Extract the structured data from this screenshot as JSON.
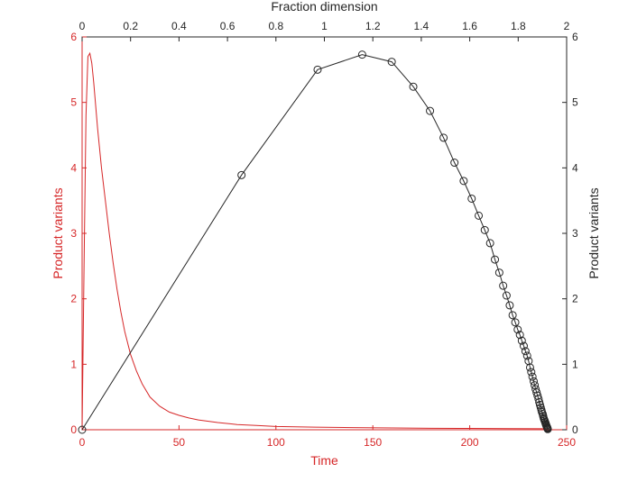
{
  "chart_data": {
    "type": "line",
    "title": "",
    "xlabel": "Time",
    "ylabel": "Product variants",
    "x2label": "Fraction dimension",
    "y2label": "Product variants",
    "xlim": [
      0,
      250
    ],
    "ylim": [
      0,
      6
    ],
    "x2lim": [
      0,
      2
    ],
    "y2lim": [
      0,
      6
    ],
    "xticks": [
      0,
      50,
      100,
      150,
      200,
      250
    ],
    "yticks": [
      0,
      1,
      2,
      3,
      4,
      5,
      6
    ],
    "x2ticks": [
      0,
      0.2,
      0.4,
      0.6,
      0.8,
      1,
      1.2,
      1.4,
      1.6,
      1.8,
      2
    ],
    "y2ticks": [
      0,
      1,
      2,
      3,
      4,
      5,
      6
    ],
    "xtick_labels": [
      "0",
      "50",
      "100",
      "150",
      "200",
      "250"
    ],
    "ytick_labels": [
      "0",
      "1",
      "2",
      "3",
      "4",
      "5",
      "6"
    ],
    "x2tick_labels": [
      "0",
      "0.2",
      "0.4",
      "0.6",
      "0.8",
      "1",
      "1.2",
      "1.4",
      "1.6",
      "1.8",
      "2"
    ],
    "y2tick_labels": [
      "0",
      "1",
      "2",
      "3",
      "4",
      "5",
      "6"
    ],
    "grid": false,
    "series": [
      {
        "axes": "bottom-left",
        "color": "#d62728",
        "marker": "none",
        "x": [
          0,
          1,
          2,
          3,
          4,
          5,
          6,
          8,
          10,
          12,
          14,
          16,
          18,
          20,
          22,
          25,
          28,
          31,
          35,
          40,
          45,
          50,
          55,
          60,
          70,
          80,
          90,
          100,
          120,
          140,
          160,
          180,
          200,
          220,
          240
        ],
        "y": [
          0,
          2.5,
          4.8,
          5.7,
          5.75,
          5.6,
          5.3,
          4.6,
          4.0,
          3.5,
          3.0,
          2.55,
          2.15,
          1.8,
          1.5,
          1.15,
          0.9,
          0.7,
          0.5,
          0.36,
          0.27,
          0.22,
          0.18,
          0.15,
          0.11,
          0.08,
          0.065,
          0.05,
          0.04,
          0.032,
          0.027,
          0.023,
          0.02,
          0.018,
          0.016
        ]
      },
      {
        "axes": "top-right",
        "color": "#262626",
        "marker": "circle",
        "x": [
          0,
          0.658,
          0.972,
          1.156,
          1.278,
          1.367,
          1.436,
          1.492,
          1.537,
          1.575,
          1.608,
          1.637,
          1.662,
          1.684,
          1.704,
          1.722,
          1.738,
          1.752,
          1.765,
          1.777,
          1.788,
          1.798,
          1.807,
          1.815,
          1.823,
          1.83,
          1.837,
          1.843,
          1.849,
          1.854,
          1.859,
          1.864,
          1.868,
          1.872,
          1.876,
          1.88,
          1.884,
          1.887,
          1.89,
          1.893,
          1.896,
          1.898,
          1.901,
          1.903,
          1.905,
          1.907,
          1.909,
          1.911,
          1.913,
          1.914,
          1.916,
          1.917,
          1.919,
          1.92,
          1.921,
          1.922
        ],
        "y": [
          0,
          3.89,
          5.5,
          5.73,
          5.62,
          5.24,
          4.87,
          4.46,
          4.08,
          3.8,
          3.53,
          3.27,
          3.05,
          2.85,
          2.6,
          2.4,
          2.2,
          2.05,
          1.9,
          1.75,
          1.64,
          1.53,
          1.45,
          1.36,
          1.28,
          1.2,
          1.13,
          1.05,
          0.95,
          0.88,
          0.81,
          0.74,
          0.68,
          0.62,
          0.57,
          0.52,
          0.47,
          0.42,
          0.38,
          0.34,
          0.3,
          0.27,
          0.24,
          0.21,
          0.18,
          0.16,
          0.14,
          0.12,
          0.1,
          0.085,
          0.07,
          0.055,
          0.04,
          0.03,
          0.02,
          0.01
        ]
      }
    ]
  }
}
